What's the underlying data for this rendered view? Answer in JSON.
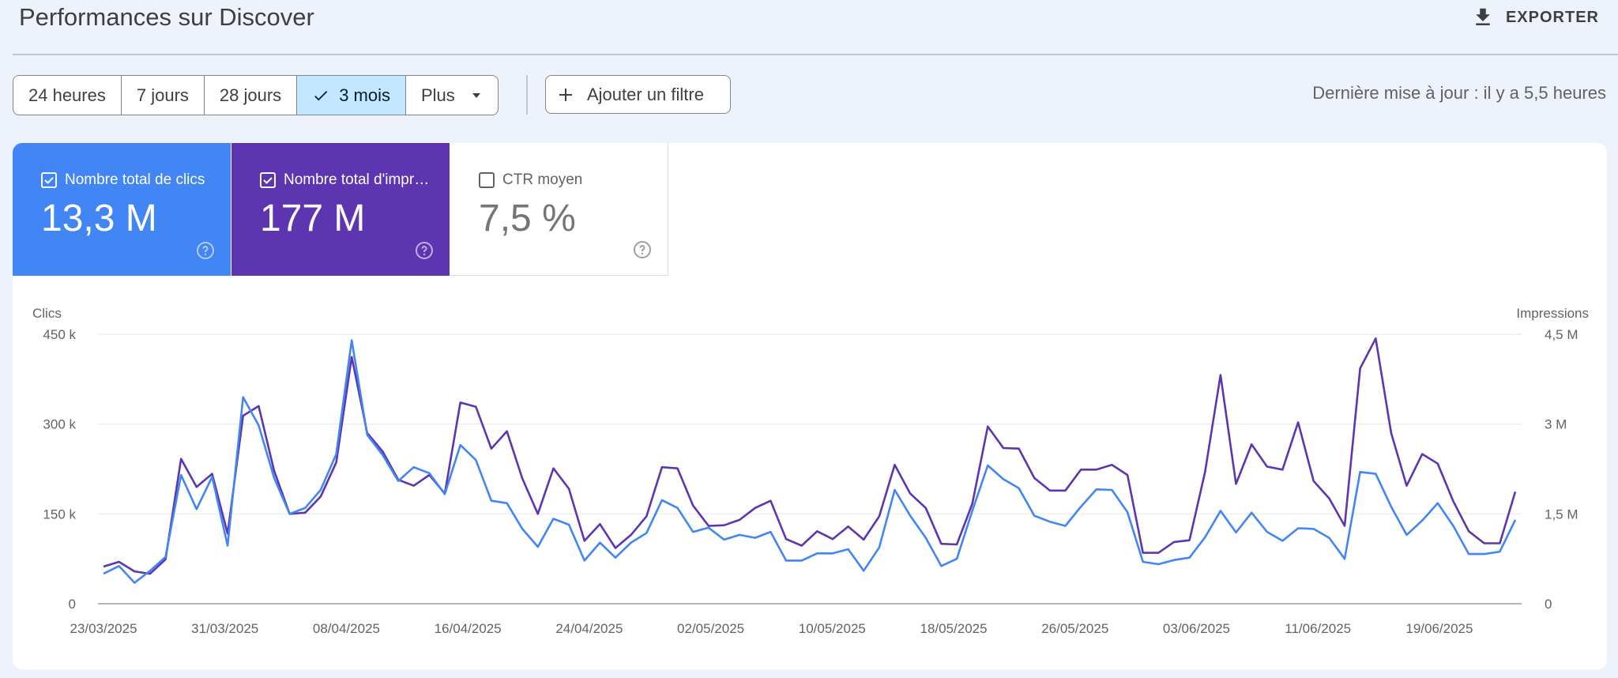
{
  "header": {
    "title": "Performances sur Discover",
    "export_label": "EXPORTER",
    "export_icon": "download-icon"
  },
  "toolbar": {
    "ranges": [
      {
        "label": "24 heures",
        "selected": false
      },
      {
        "label": "7 jours",
        "selected": false
      },
      {
        "label": "28 jours",
        "selected": false
      },
      {
        "label": "3 mois",
        "selected": true
      },
      {
        "label": "Plus",
        "selected": false
      }
    ],
    "add_filter_label": "Ajouter un filtre",
    "last_update": "Dernière mise à jour : il y a 5,5 heures"
  },
  "metrics": [
    {
      "label": "Nombre total de clics",
      "value": "13,3 M",
      "checked": true,
      "color": "#4285f4"
    },
    {
      "label": "Nombre total d'impressions",
      "value": "177 M",
      "checked": true,
      "color": "#5e35b1"
    },
    {
      "label": "CTR moyen",
      "value": "7,5 %",
      "checked": false,
      "color": "#ffffff"
    }
  ],
  "chart_data": {
    "type": "line",
    "left_axis_title": "Clics",
    "right_axis_title": "Impressions",
    "left_ticks": [
      "0",
      "150 k",
      "300 k",
      "450 k"
    ],
    "right_ticks": [
      "0",
      "1,5 M",
      "3 M",
      "4,5 M"
    ],
    "left_ylim": [
      0,
      450000
    ],
    "right_ylim": [
      0,
      4500000
    ],
    "x_ticks": [
      "23/03/2025",
      "31/03/2025",
      "08/04/2025",
      "16/04/2025",
      "24/04/2025",
      "02/05/2025",
      "10/05/2025",
      "18/05/2025",
      "26/05/2025",
      "03/06/2025",
      "11/06/2025",
      "19/06/2025"
    ],
    "x_start": "23/03/2025",
    "x_end": "24/06/2025",
    "grid": true,
    "series": [
      {
        "name": "Clics",
        "axis": "left",
        "color": "#4285f4",
        "values": [
          50000,
          63000,
          35000,
          55000,
          78000,
          215000,
          158000,
          212000,
          97000,
          345000,
          298000,
          210000,
          150000,
          160000,
          190000,
          250000,
          440000,
          282000,
          248000,
          205000,
          228000,
          218000,
          183000,
          265000,
          240000,
          172000,
          168000,
          125000,
          95000,
          142000,
          132000,
          72000,
          102000,
          77000,
          102000,
          118000,
          173000,
          160000,
          120000,
          127000,
          107000,
          115000,
          110000,
          120000,
          72000,
          72000,
          84000,
          84000,
          91000,
          55000,
          94000,
          190000,
          147000,
          110000,
          63000,
          75000,
          155000,
          231000,
          208000,
          193000,
          147000,
          137000,
          130000,
          162000,
          191000,
          190000,
          153000,
          70000,
          66000,
          73000,
          77000,
          111000,
          155000,
          119000,
          152000,
          120000,
          105000,
          126000,
          125000,
          110000,
          75000,
          220000,
          217000,
          162000,
          115000,
          139000,
          168000,
          130000,
          83000,
          83000,
          87000,
          140000
        ]
      },
      {
        "name": "Impressions",
        "axis": "right",
        "color": "#5e35b1",
        "values": [
          620000,
          700000,
          540000,
          500000,
          740000,
          2420000,
          1950000,
          2170000,
          1170000,
          3140000,
          3300000,
          2220000,
          1500000,
          1520000,
          1790000,
          2360000,
          4120000,
          2850000,
          2540000,
          2070000,
          1970000,
          2150000,
          1840000,
          3360000,
          3290000,
          2590000,
          2880000,
          2090000,
          1500000,
          2260000,
          1920000,
          1050000,
          1330000,
          930000,
          1150000,
          1460000,
          2280000,
          2260000,
          1640000,
          1300000,
          1310000,
          1400000,
          1600000,
          1720000,
          1080000,
          970000,
          1210000,
          1080000,
          1290000,
          1070000,
          1460000,
          2320000,
          1840000,
          1600000,
          1000000,
          990000,
          1670000,
          2960000,
          2600000,
          2590000,
          2100000,
          1890000,
          1890000,
          2240000,
          2240000,
          2320000,
          2150000,
          850000,
          850000,
          1030000,
          1060000,
          2200000,
          3820000,
          2000000,
          2660000,
          2290000,
          2240000,
          3030000,
          2050000,
          1760000,
          1300000,
          3930000,
          4430000,
          2850000,
          1970000,
          2500000,
          2340000,
          1710000,
          1210000,
          1010000,
          1010000,
          1870000
        ]
      }
    ]
  }
}
